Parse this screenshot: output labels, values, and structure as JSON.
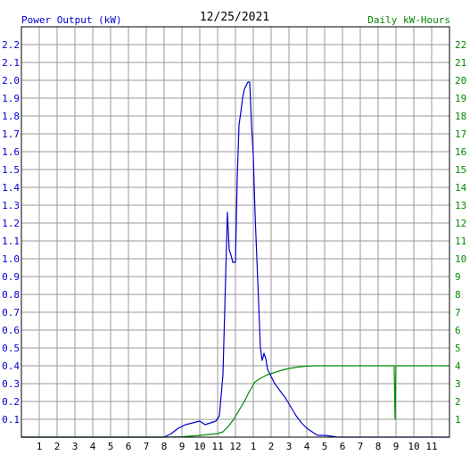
{
  "chart_data": {
    "type": "line",
    "title": "12/25/2021",
    "left_axis_label": "Power Output (kW)",
    "right_axis_label": "Daily kW-Hours",
    "x_tick_labels": [
      "1",
      "2",
      "3",
      "4",
      "5",
      "6",
      "7",
      "8",
      "9",
      "10",
      "11",
      "12",
      "1",
      "2",
      "3",
      "4",
      "5",
      "6",
      "7",
      "8",
      "9",
      "10",
      "11"
    ],
    "x_range_hours": [
      0,
      24
    ],
    "left_ylim": [
      0,
      2.3
    ],
    "left_tick_labels": [
      "0.1",
      "0.2",
      "0.3",
      "0.4",
      "0.5",
      "0.6",
      "0.7",
      "0.8",
      "0.9",
      "1.0",
      "1.1",
      "1.2",
      "1.3",
      "1.4",
      "1.5",
      "1.6",
      "1.7",
      "1.8",
      "1.9",
      "2.0",
      "2.1",
      "2.2"
    ],
    "right_ylim": [
      0,
      23
    ],
    "right_tick_labels": [
      "1",
      "2",
      "3",
      "4",
      "5",
      "6",
      "7",
      "8",
      "9",
      "10",
      "11",
      "12",
      "13",
      "14",
      "15",
      "16",
      "17",
      "18",
      "19",
      "20",
      "21",
      "22"
    ],
    "grid": true,
    "series": [
      {
        "color": "#0000cc",
        "axis": "left",
        "x": [
          0,
          8.0,
          8.4,
          8.8,
          9.2,
          9.6,
          10.0,
          10.3,
          10.6,
          10.9,
          11.1,
          11.3,
          11.45,
          11.55,
          11.65,
          11.75,
          11.85,
          12.0,
          12.1,
          12.2,
          12.3,
          12.4,
          12.5,
          12.6,
          12.7,
          12.8,
          12.9,
          13.0,
          13.1,
          13.2,
          13.3,
          13.4,
          13.5,
          13.6,
          13.7,
          13.8,
          14.0,
          14.2,
          14.5,
          14.8,
          15.1,
          15.4,
          15.7,
          16.0,
          16.3,
          16.6,
          17.0,
          17.4,
          17.7,
          24
        ],
        "y": [
          0,
          0,
          0.02,
          0.05,
          0.07,
          0.08,
          0.09,
          0.07,
          0.08,
          0.09,
          0.12,
          0.35,
          0.9,
          1.26,
          1.05,
          1.02,
          0.98,
          0.98,
          1.45,
          1.75,
          1.82,
          1.9,
          1.95,
          1.97,
          1.99,
          1.99,
          1.75,
          1.58,
          1.25,
          1.0,
          0.75,
          0.5,
          0.43,
          0.47,
          0.44,
          0.38,
          0.34,
          0.3,
          0.26,
          0.22,
          0.17,
          0.12,
          0.08,
          0.05,
          0.03,
          0.01,
          0.01,
          0.005,
          0,
          0
        ]
      },
      {
        "color": "#008800",
        "axis": "right",
        "x": [
          0,
          8.0,
          9.0,
          10.0,
          11.0,
          11.3,
          11.6,
          11.9,
          12.2,
          12.5,
          12.8,
          13.1,
          13.4,
          13.8,
          14.2,
          14.6,
          15.0,
          15.5,
          16.0,
          16.5,
          17.0,
          18.0,
          19.0,
          20.0,
          20.9,
          20.95,
          21.0,
          21.05,
          24
        ],
        "y": [
          0,
          0,
          0.02,
          0.1,
          0.2,
          0.3,
          0.6,
          1.0,
          1.5,
          2.0,
          2.6,
          3.1,
          3.3,
          3.5,
          3.62,
          3.75,
          3.85,
          3.93,
          3.98,
          4.0,
          4.0,
          4.0,
          4.0,
          4.0,
          4.0,
          1.0,
          4.0,
          4.0,
          4.0
        ]
      }
    ]
  }
}
